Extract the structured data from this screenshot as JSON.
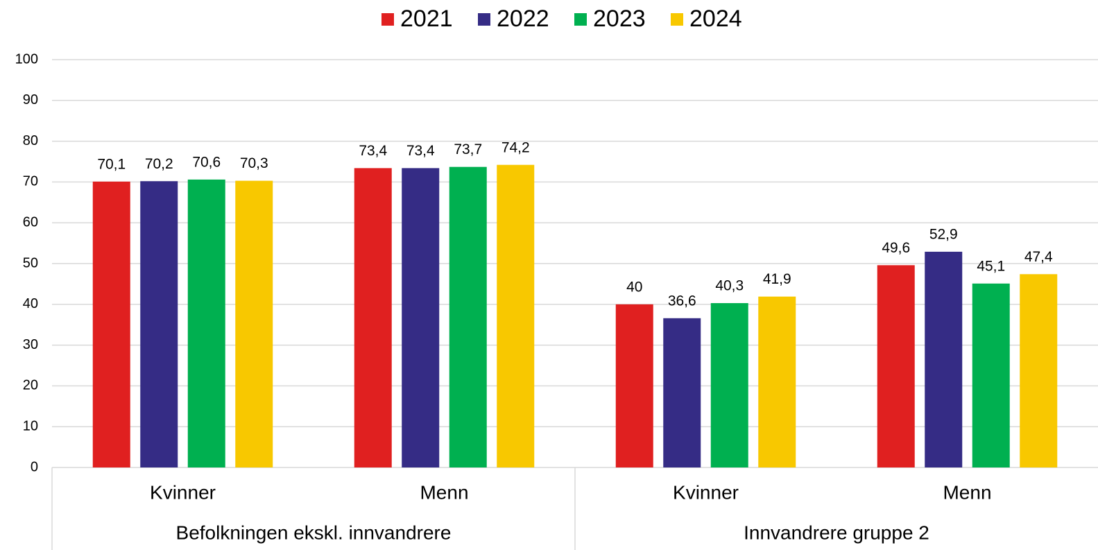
{
  "chart_data": {
    "type": "bar",
    "categories": [
      "Kvinner",
      "Menn",
      "Kvinner",
      "Menn"
    ],
    "group_labels": [
      "Befolkningen ekskl. innvandrere",
      "Innvandrere gruppe 2"
    ],
    "series": [
      {
        "name": "2021",
        "color": "#e02020",
        "values": [
          70.1,
          73.4,
          40,
          49.6
        ],
        "value_labels": [
          "70,1",
          "73,4",
          "40",
          "49,6"
        ]
      },
      {
        "name": "2022",
        "color": "#352c85",
        "values": [
          70.2,
          73.4,
          36.6,
          52.9
        ],
        "value_labels": [
          "70,2",
          "73,4",
          "36,6",
          "52,9"
        ]
      },
      {
        "name": "2023",
        "color": "#00b050",
        "values": [
          70.6,
          73.7,
          40.3,
          45.1
        ],
        "value_labels": [
          "70,6",
          "73,7",
          "40,3",
          "45,1"
        ]
      },
      {
        "name": "2024",
        "color": "#f8c800",
        "values": [
          70.3,
          74.2,
          41.9,
          47.4
        ],
        "value_labels": [
          "70,3",
          "74,2",
          "41,9",
          "47,4"
        ]
      }
    ],
    "ylim": [
      0,
      100
    ],
    "yticks": [
      0,
      10,
      20,
      30,
      40,
      50,
      60,
      70,
      80,
      90,
      100
    ],
    "grid": true,
    "legend": "top"
  }
}
